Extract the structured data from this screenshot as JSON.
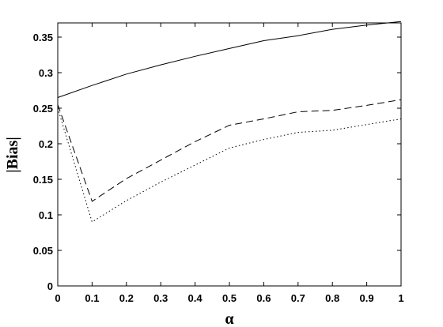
{
  "chart_data": {
    "type": "line",
    "xlabel": "α",
    "ylabel": "|Bias|",
    "xlim": [
      0,
      1
    ],
    "ylim": [
      0,
      0.37
    ],
    "x_ticks": [
      "0",
      "0.1",
      "0.2",
      "0.3",
      "0.4",
      "0.5",
      "0.6",
      "0.7",
      "0.8",
      "0.9",
      "1"
    ],
    "y_ticks": [
      "0",
      "0.05",
      "0.1",
      "0.15",
      "0.2",
      "0.25",
      "0.3",
      "0.35"
    ],
    "grid": false,
    "series": [
      {
        "style": "solid",
        "x": [
          0,
          0.1,
          0.2,
          0.3,
          0.4,
          0.5,
          0.6,
          0.7,
          0.8,
          0.9,
          1.0
        ],
        "y": [
          0.265,
          0.282,
          0.298,
          0.311,
          0.323,
          0.334,
          0.345,
          0.352,
          0.361,
          0.367,
          0.372
        ]
      },
      {
        "style": "dashed",
        "x": [
          0,
          0.1,
          0.2,
          0.3,
          0.4,
          0.5,
          0.6,
          0.7,
          0.8,
          0.9,
          1.0
        ],
        "y": [
          0.255,
          0.119,
          0.151,
          0.177,
          0.203,
          0.226,
          0.235,
          0.245,
          0.247,
          0.254,
          0.262
        ]
      },
      {
        "style": "dotted",
        "x": [
          0,
          0.1,
          0.2,
          0.3,
          0.4,
          0.5,
          0.6,
          0.7,
          0.8,
          0.9,
          1.0
        ],
        "y": [
          0.25,
          0.09,
          0.12,
          0.146,
          0.17,
          0.194,
          0.206,
          0.216,
          0.219,
          0.227,
          0.235
        ]
      }
    ]
  }
}
